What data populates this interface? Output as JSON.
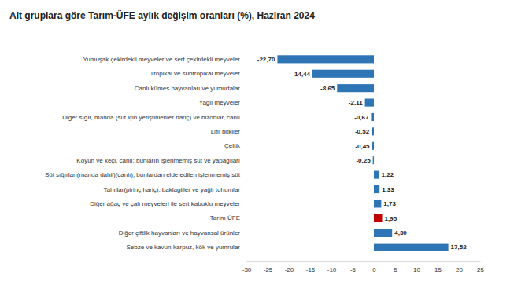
{
  "chart_data": {
    "type": "bar",
    "orientation": "horizontal",
    "title": "Alt gruplara göre Tarım-ÜFE aylık değişim oranları (%), Haziran 2024",
    "categories": [
      "Yumuşak çekirdekli meyveler ve sert çekirdekli meyveler",
      "Tropikal ve subtropikal meyveler",
      "Canlı kümes hayvanları ve yumurtalar",
      "Yağlı meyveler",
      "Diğer sığır, manda (süt için yetiştirilenler hariç) ve bizonlar, canlı",
      "Lifli bitkiler",
      "Çeltik",
      "Koyun ve keçi, canlı; bunların işlenmemiş süt ve yapağıları",
      "Süt sığırları(manda dahil)(canlı), bunlardan elde edilen işlenmemiş süt",
      "Tahıllar(pirinç hariç), baklagiller ve yağlı tohumlar",
      "Diğer ağaç ve çalı meyveleri ile sert kabuklu meyveler",
      "Tarım ÜFE",
      "Diğer çiftlik hayvanları ve hayvansal ürünler",
      "Sebze ve kavun-karpuz, kök ve yumrular"
    ],
    "values": [
      -22.7,
      -14.44,
      -8.65,
      -2.11,
      -0.67,
      -0.52,
      -0.45,
      -0.25,
      1.22,
      1.33,
      1.73,
      1.95,
      4.3,
      17.52
    ],
    "value_labels": [
      "-22,70",
      "-14,44",
      "-8,65",
      "-2,11",
      "-0,67",
      "-0,52",
      "-0,45",
      "-0,25",
      "1,22",
      "1,33",
      "1,73",
      "1,95",
      "4,30",
      "17,52"
    ],
    "colors": [
      "#2e75b6",
      "#2e75b6",
      "#2e75b6",
      "#2e75b6",
      "#2e75b6",
      "#2e75b6",
      "#2e75b6",
      "#2e75b6",
      "#2e75b6",
      "#2e75b6",
      "#2e75b6",
      "#c00000",
      "#2e75b6",
      "#2e75b6"
    ],
    "xlim": [
      -30,
      25
    ],
    "xticks": [
      -30,
      -25,
      -20,
      -15,
      -10,
      -5,
      0,
      5,
      10,
      15,
      20,
      25
    ],
    "grid": false,
    "data_labels": true
  }
}
